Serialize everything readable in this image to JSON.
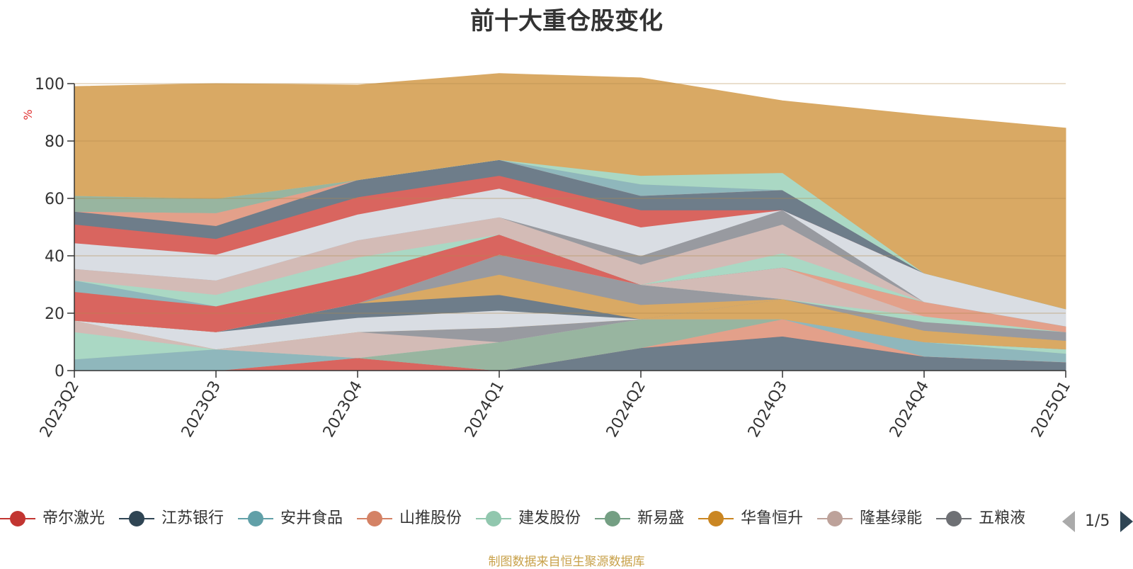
{
  "title": "前十大重仓股变化",
  "source_note": "制图数据来自恒生聚源数据库",
  "legend_pager": "1/5",
  "chart_data": {
    "type": "area",
    "stacked": true,
    "x": [
      "2023Q2",
      "2023Q3",
      "2023Q4",
      "2024Q1",
      "2024Q2",
      "2024Q3",
      "2024Q4",
      "2025Q1"
    ],
    "ylabel": "%",
    "ylim": [
      0,
      100
    ],
    "yticks": [
      0,
      20,
      40,
      60,
      80,
      100
    ],
    "grid": true,
    "legend_position": "bottom",
    "series": [
      {
        "color": "#6e7d8a",
        "values": [
          0,
          0,
          0,
          0,
          8,
          12,
          5,
          3
        ]
      },
      {
        "color": "#d9655f",
        "values": [
          0,
          0,
          4.5,
          0,
          0,
          0,
          0,
          0
        ]
      },
      {
        "color": "#e3a08a",
        "values": [
          0,
          0,
          0,
          0,
          0,
          6,
          0,
          0
        ]
      },
      {
        "color": "#8fb7bc",
        "values": [
          4,
          7.5,
          0,
          0,
          0,
          0,
          5,
          3
        ]
      },
      {
        "color": "#98b5a0",
        "values": [
          0,
          0,
          0,
          10,
          10,
          0,
          0,
          0
        ]
      },
      {
        "color": "#aad8c4",
        "values": [
          9.5,
          0,
          0,
          0,
          0,
          0,
          0,
          1.5
        ]
      },
      {
        "color": "#d3bbb6",
        "values": [
          4,
          0,
          9,
          0,
          0,
          0,
          0,
          0
        ]
      },
      {
        "color": "#989aa0",
        "values": [
          0,
          0,
          0,
          5,
          0,
          0,
          0,
          0
        ]
      },
      {
        "color": "#d9a964",
        "values": [
          0,
          0,
          0,
          0,
          0,
          7,
          4,
          3
        ]
      },
      {
        "color": "#d9dde3",
        "values": [
          0,
          6,
          5,
          6,
          0,
          0,
          0,
          0
        ]
      },
      {
        "color": "#6e7d8a",
        "values": [
          0,
          0,
          5,
          5.5,
          0,
          0,
          0,
          0
        ]
      },
      {
        "color": "#d9a964",
        "values": [
          0,
          0,
          0,
          7,
          5,
          0,
          0,
          0
        ]
      },
      {
        "color": "#989aa0",
        "values": [
          0,
          0,
          0,
          7,
          7,
          0,
          3,
          3
        ]
      },
      {
        "color": "#aad8c4",
        "values": [
          0,
          0,
          0,
          0,
          0,
          0,
          2,
          0
        ]
      },
      {
        "color": "#d3bbb6",
        "values": [
          0,
          0,
          0,
          0,
          0,
          11,
          0,
          0
        ]
      },
      {
        "color": "#e3a08a",
        "values": [
          0,
          0,
          0,
          0,
          0,
          0,
          5,
          2
        ]
      },
      {
        "color": "#d9655f",
        "values": [
          10,
          9,
          10,
          7,
          0,
          0,
          0,
          0
        ]
      },
      {
        "color": "#8fb7bc",
        "values": [
          4,
          0,
          0,
          0,
          0,
          0,
          0,
          0
        ]
      },
      {
        "color": "#aad8c4",
        "values": [
          0,
          4,
          6,
          0,
          0,
          5,
          0,
          0
        ]
      },
      {
        "color": "#d3bbb6",
        "values": [
          4,
          5,
          6,
          6,
          7,
          10,
          0,
          0
        ]
      },
      {
        "color": "#989aa0",
        "values": [
          0,
          0,
          0,
          0,
          3,
          5,
          0,
          0
        ]
      },
      {
        "color": "#d9dde3",
        "values": [
          9,
          9,
          9,
          10,
          10,
          0,
          10,
          6
        ]
      },
      {
        "color": "#d9655f",
        "values": [
          6.5,
          5.5,
          6,
          4.5,
          6,
          0,
          0,
          0
        ]
      },
      {
        "color": "#6e7d8a",
        "values": [
          4.5,
          4.5,
          6,
          5.5,
          5,
          7,
          0,
          0
        ]
      },
      {
        "color": "#e3a08a",
        "values": [
          0,
          4.5,
          0,
          0,
          0,
          0,
          0,
          0
        ]
      },
      {
        "color": "#8fb7bc",
        "values": [
          0,
          0,
          0,
          0,
          4,
          0,
          0,
          0
        ]
      },
      {
        "color": "#98b5a0",
        "values": [
          5.5,
          5,
          0,
          0,
          0,
          0,
          0,
          0
        ]
      },
      {
        "color": "#aad8c4",
        "values": [
          0,
          0,
          0,
          0,
          3,
          6,
          0,
          0
        ]
      },
      {
        "color": "#d9a964",
        "values": [
          38,
          40,
          33,
          30,
          34,
          25,
          55,
          63
        ]
      }
    ]
  },
  "legend": {
    "items": [
      {
        "label": "帝尔激光",
        "color": "#c23531"
      },
      {
        "label": "江苏银行",
        "color": "#2f4554"
      },
      {
        "label": "安井食品",
        "color": "#61a0a8"
      },
      {
        "label": "山推股份",
        "color": "#d48265"
      },
      {
        "label": "建发股份",
        "color": "#91c7ae"
      },
      {
        "label": "新易盛",
        "color": "#749f83"
      },
      {
        "label": "华鲁恒升",
        "color": "#ca8622"
      },
      {
        "label": "隆基绿能",
        "color": "#bda29a"
      },
      {
        "label": "五粮液",
        "color": "#6e7074"
      }
    ]
  }
}
